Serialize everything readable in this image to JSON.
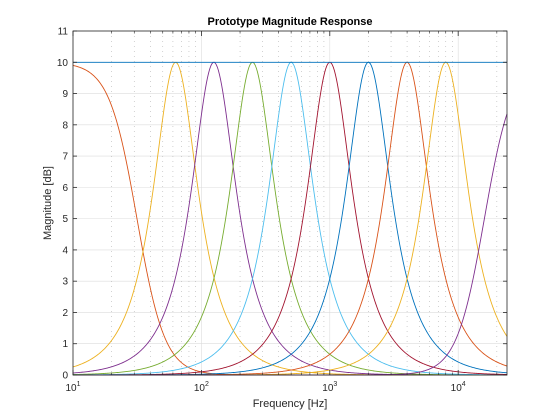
{
  "chart_data": {
    "type": "line",
    "title": "Prototype Magnitude Response",
    "xlabel": "Frequency [Hz]",
    "ylabel": "Magnitude [dB]",
    "x_scale": "log",
    "xlim": [
      10,
      24000
    ],
    "ylim": [
      0,
      11
    ],
    "y_ticks": [
      "0",
      "1",
      "2",
      "3",
      "4",
      "5",
      "6",
      "7",
      "8",
      "9",
      "10",
      "11"
    ],
    "x_ticks": [
      {
        "value": 10,
        "base": "10",
        "exp": "1"
      },
      {
        "value": 100,
        "base": "10",
        "exp": "2"
      },
      {
        "value": 1000,
        "base": "10",
        "exp": "3"
      },
      {
        "value": 10000,
        "base": "10",
        "exp": "4"
      }
    ],
    "grid": true,
    "peak_db": 10,
    "colors": {
      "axes": "#262626",
      "grid_major": "#dcdcdc",
      "grid_minor": "#b4b4b4"
    },
    "series": [
      {
        "type": "lowpass",
        "cutoff_hz": 31.5,
        "color": "#d95319"
      },
      {
        "type": "bandpass",
        "center_hz": 63,
        "color": "#edb120"
      },
      {
        "type": "bandpass",
        "center_hz": 125,
        "color": "#7e2f8e"
      },
      {
        "type": "bandpass",
        "center_hz": 250,
        "color": "#77ac30"
      },
      {
        "type": "bandpass",
        "center_hz": 500,
        "color": "#4dbeee"
      },
      {
        "type": "bandpass",
        "center_hz": 1000,
        "color": "#a2142f"
      },
      {
        "type": "bandpass",
        "center_hz": 2000,
        "color": "#0072bd"
      },
      {
        "type": "bandpass",
        "center_hz": 4000,
        "color": "#d95319"
      },
      {
        "type": "bandpass",
        "center_hz": 8000,
        "color": "#edb120"
      },
      {
        "type": "highpass",
        "cutoff_hz": 16000,
        "color": "#7e2f8e"
      },
      {
        "type": "flat",
        "level_db": 10,
        "color": "#0072bd"
      }
    ]
  }
}
